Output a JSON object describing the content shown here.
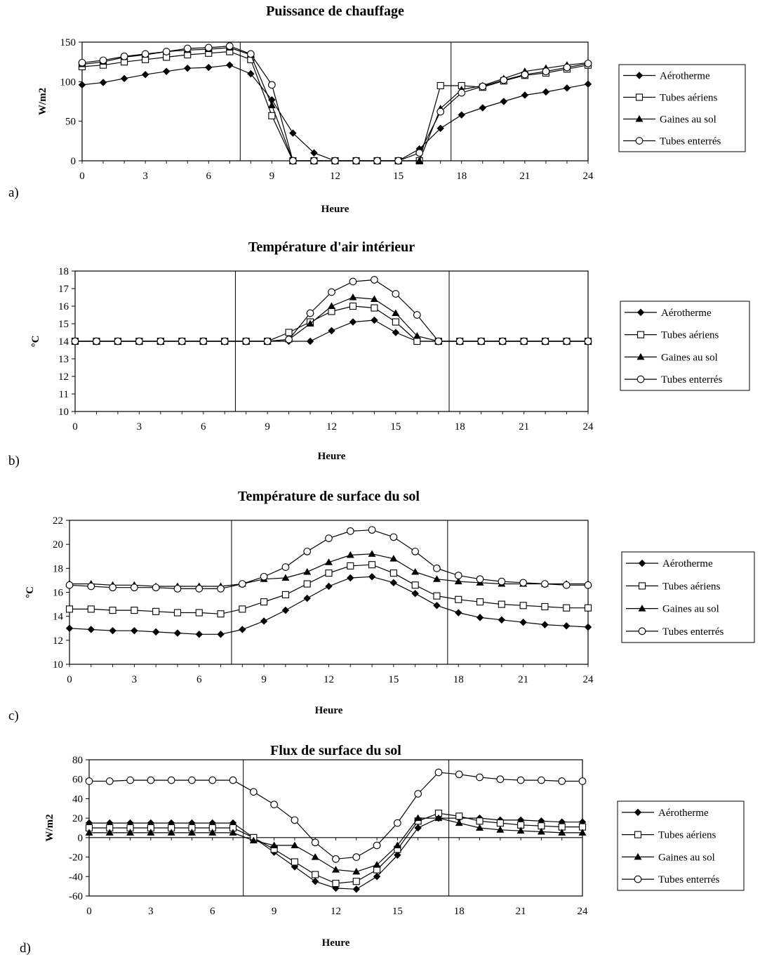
{
  "chart_data": [
    {
      "panel": "a)",
      "type": "line",
      "title": "Puissance de chauffage",
      "xlabel": "Heure",
      "ylabel": "W/m2",
      "xlim": [
        0,
        24
      ],
      "ylim": [
        0,
        150
      ],
      "xticks": [
        0,
        3,
        6,
        9,
        12,
        15,
        18,
        21,
        24
      ],
      "yticks": [
        0,
        50,
        100,
        150
      ],
      "vlines": [
        7.5,
        17.5
      ],
      "legend_position": "right",
      "x": [
        0,
        1,
        2,
        3,
        4,
        5,
        6,
        7,
        8,
        9,
        10,
        11,
        12,
        13,
        14,
        15,
        16,
        17,
        18,
        19,
        20,
        21,
        22,
        23,
        24
      ],
      "series": [
        {
          "name": "Aérotherme",
          "marker": "diamond",
          "values": [
            96,
            99,
            104,
            109,
            113,
            117,
            118,
            121,
            110,
            77,
            35,
            10,
            0,
            0,
            0,
            0,
            15,
            41,
            58,
            67,
            75,
            83,
            87,
            92,
            97
          ]
        },
        {
          "name": "Tubes aériens",
          "marker": "square",
          "values": [
            119,
            121,
            125,
            128,
            131,
            134,
            136,
            138,
            128,
            57,
            0,
            0,
            0,
            0,
            0,
            0,
            0,
            95,
            95,
            93,
            101,
            108,
            111,
            116,
            121
          ]
        },
        {
          "name": "Gaines au sol",
          "marker": "triangle",
          "values": [
            122,
            125,
            131,
            134,
            138,
            140,
            141,
            143,
            134,
            70,
            0,
            0,
            0,
            0,
            0,
            0,
            0,
            66,
            90,
            95,
            104,
            113,
            117,
            121,
            124
          ]
        },
        {
          "name": "Tubes enterrés",
          "marker": "circle",
          "values": [
            124,
            127,
            132,
            135,
            138,
            142,
            143,
            145,
            135,
            96,
            0,
            0,
            0,
            0,
            0,
            0,
            10,
            62,
            86,
            94,
            102,
            109,
            113,
            118,
            123
          ]
        }
      ]
    },
    {
      "panel": "b)",
      "type": "line",
      "title": "Température d'air intérieur",
      "xlabel": "Heure",
      "ylabel": "°C",
      "xlim": [
        0,
        24
      ],
      "ylim": [
        10,
        18
      ],
      "xticks": [
        0,
        3,
        6,
        9,
        12,
        15,
        18,
        21,
        24
      ],
      "yticks": [
        10,
        11,
        12,
        13,
        14,
        15,
        16,
        17,
        18
      ],
      "vlines": [
        7.5,
        17.5
      ],
      "legend_position": "right",
      "x": [
        0,
        1,
        2,
        3,
        4,
        5,
        6,
        7,
        8,
        9,
        10,
        11,
        12,
        13,
        14,
        15,
        16,
        17,
        18,
        19,
        20,
        21,
        22,
        23,
        24
      ],
      "series": [
        {
          "name": "Aérotherme",
          "marker": "diamond",
          "values": [
            14,
            14,
            14,
            14,
            14,
            14,
            14,
            14,
            14,
            14,
            14,
            14,
            14.6,
            15.1,
            15.2,
            14.5,
            14,
            14,
            14,
            14,
            14,
            14,
            14,
            14,
            14
          ]
        },
        {
          "name": "Tubes aériens",
          "marker": "square",
          "values": [
            14,
            14,
            14,
            14,
            14,
            14,
            14,
            14,
            14,
            14,
            14.5,
            15.1,
            15.7,
            16,
            15.9,
            15.1,
            14,
            14,
            14,
            14,
            14,
            14,
            14,
            14,
            14
          ]
        },
        {
          "name": "Gaines au sol",
          "marker": "triangle",
          "values": [
            14,
            14,
            14,
            14,
            14,
            14,
            14,
            14,
            14,
            14,
            14.1,
            15,
            16,
            16.5,
            16.4,
            15.6,
            14.3,
            14,
            14,
            14,
            14,
            14,
            14,
            14,
            14
          ]
        },
        {
          "name": "Tubes enterrés",
          "marker": "circle",
          "values": [
            14,
            14,
            14,
            14,
            14,
            14,
            14,
            14,
            14,
            14,
            14.1,
            15.6,
            16.8,
            17.4,
            17.5,
            16.7,
            15.5,
            14,
            14,
            14,
            14,
            14,
            14,
            14,
            14
          ]
        }
      ]
    },
    {
      "panel": "c)",
      "type": "line",
      "title": "Température de surface du sol",
      "xlabel": "Heure",
      "ylabel": "°C",
      "xlim": [
        0,
        24
      ],
      "ylim": [
        10,
        22
      ],
      "xticks": [
        0,
        3,
        6,
        9,
        12,
        15,
        18,
        21,
        24
      ],
      "yticks": [
        10,
        12,
        14,
        16,
        18,
        20,
        22
      ],
      "vlines": [
        7.5,
        17.5
      ],
      "legend_position": "right",
      "x": [
        0,
        1,
        2,
        3,
        4,
        5,
        6,
        7,
        8,
        9,
        10,
        11,
        12,
        13,
        14,
        15,
        16,
        17,
        18,
        19,
        20,
        21,
        22,
        23,
        24
      ],
      "series": [
        {
          "name": "Aérotherme",
          "marker": "diamond",
          "values": [
            13,
            12.9,
            12.8,
            12.8,
            12.7,
            12.6,
            12.5,
            12.5,
            12.9,
            13.6,
            14.5,
            15.5,
            16.5,
            17.2,
            17.3,
            16.8,
            15.9,
            14.9,
            14.3,
            13.9,
            13.7,
            13.5,
            13.3,
            13.2,
            13.1
          ]
        },
        {
          "name": "Tubes aériens",
          "marker": "square",
          "values": [
            14.6,
            14.6,
            14.5,
            14.5,
            14.4,
            14.3,
            14.3,
            14.2,
            14.6,
            15.2,
            15.8,
            16.7,
            17.6,
            18.2,
            18.3,
            17.6,
            16.6,
            15.7,
            15.4,
            15.2,
            15,
            14.9,
            14.8,
            14.7,
            14.7
          ]
        },
        {
          "name": "Gaines au sol",
          "marker": "triangle",
          "values": [
            16.7,
            16.7,
            16.6,
            16.6,
            16.5,
            16.5,
            16.5,
            16.5,
            16.7,
            17.1,
            17.2,
            17.7,
            18.5,
            19.1,
            19.2,
            18.8,
            17.7,
            17.1,
            16.9,
            16.8,
            16.7,
            16.7,
            16.7,
            16.7,
            16.7
          ]
        },
        {
          "name": "Tubes enterrés",
          "marker": "circle",
          "values": [
            16.6,
            16.5,
            16.4,
            16.4,
            16.4,
            16.3,
            16.3,
            16.3,
            16.7,
            17.3,
            18.1,
            19.4,
            20.5,
            21.1,
            21.2,
            20.6,
            19.4,
            18,
            17.4,
            17.1,
            16.9,
            16.8,
            16.7,
            16.6,
            16.6
          ]
        }
      ]
    },
    {
      "panel": "d)",
      "type": "line",
      "title": "Flux de surface du sol",
      "xlabel": "Heure",
      "ylabel": "W/m2",
      "xlim": [
        0,
        24
      ],
      "ylim": [
        -60,
        80
      ],
      "xticks": [
        0,
        3,
        6,
        9,
        12,
        15,
        18,
        21,
        24
      ],
      "yticks": [
        -60,
        -40,
        -20,
        0,
        20,
        40,
        60,
        80
      ],
      "vlines": [
        7.5,
        17.5
      ],
      "legend_position": "right",
      "x": [
        0,
        1,
        2,
        3,
        4,
        5,
        6,
        7,
        8,
        9,
        10,
        11,
        12,
        13,
        14,
        15,
        16,
        17,
        18,
        19,
        20,
        21,
        22,
        23,
        24
      ],
      "series": [
        {
          "name": "Aérotherme",
          "marker": "diamond",
          "values": [
            15,
            15,
            15,
            15,
            15,
            15,
            15,
            15,
            0,
            -15,
            -30,
            -45,
            -52,
            -53,
            -40,
            -18,
            10,
            20,
            20,
            20,
            18,
            18,
            17,
            16,
            16
          ]
        },
        {
          "name": "Tubes aériens",
          "marker": "square",
          "values": [
            10,
            10,
            10,
            10,
            10,
            10,
            10,
            10,
            0,
            -12,
            -25,
            -38,
            -47,
            -45,
            -33,
            -12,
            17,
            25,
            22,
            17,
            15,
            13,
            12,
            11,
            11
          ]
        },
        {
          "name": "Gaines au sol",
          "marker": "triangle",
          "values": [
            5,
            5,
            5,
            5,
            5,
            5,
            5,
            5,
            -3,
            -8,
            -8,
            -20,
            -33,
            -35,
            -28,
            -8,
            20,
            20,
            15,
            10,
            8,
            7,
            6,
            5,
            5
          ]
        },
        {
          "name": "Tubes enterrés",
          "marker": "circle",
          "values": [
            58,
            58,
            59,
            59,
            59,
            59,
            59,
            59,
            47,
            34,
            18,
            -5,
            -22,
            -20,
            -8,
            15,
            45,
            67,
            65,
            62,
            60,
            59,
            59,
            58,
            58
          ]
        }
      ]
    }
  ]
}
